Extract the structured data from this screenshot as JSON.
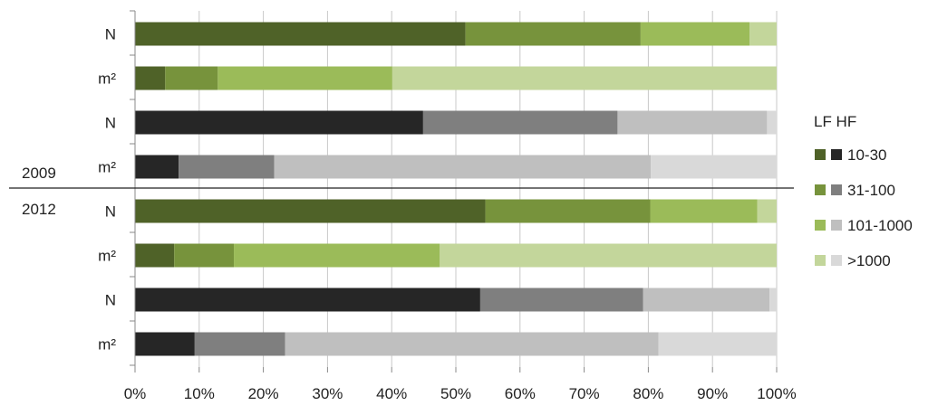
{
  "chart_data": {
    "type": "bar",
    "orientation": "horizontal",
    "stacked": "100%",
    "xlabel": "",
    "ylabel": "",
    "xlim": [
      0,
      100
    ],
    "x_ticks": [
      "0%",
      "10%",
      "20%",
      "30%",
      "40%",
      "50%",
      "60%",
      "70%",
      "80%",
      "90%",
      "100%"
    ],
    "grid": "vertical gridlines",
    "legend_placement": "right",
    "legend_header": "LF HF",
    "categories": [
      "10-30",
      "31-100",
      "101-1000",
      ">1000"
    ],
    "colors": {
      "LF": [
        "#4f6228",
        "#77933c",
        "#9bbb59",
        "#c3d69b"
      ],
      "HF": [
        "#262626",
        "#7f7f7f",
        "#bfbfbf",
        "#d9d9d9"
      ]
    },
    "group_labels": [
      "2009",
      "2012"
    ],
    "rows": [
      {
        "label": "N",
        "group": "2009",
        "scheme": "LF",
        "values": [
          51.5,
          27.3,
          17.0,
          4.2
        ]
      },
      {
        "label": "m²",
        "group": "2009",
        "scheme": "LF",
        "values": [
          4.7,
          8.2,
          27.2,
          59.9
        ]
      },
      {
        "label": "N",
        "group": "2009",
        "scheme": "HF",
        "values": [
          44.9,
          30.3,
          23.3,
          1.5
        ]
      },
      {
        "label": "m²",
        "group": "2009",
        "scheme": "HF",
        "values": [
          6.8,
          14.9,
          58.7,
          19.6
        ]
      },
      {
        "label": "N",
        "group": "2012",
        "scheme": "LF",
        "values": [
          54.6,
          25.7,
          16.7,
          3.0
        ]
      },
      {
        "label": "m²",
        "group": "2012",
        "scheme": "LF",
        "values": [
          6.1,
          9.3,
          32.1,
          52.5
        ]
      },
      {
        "label": "N",
        "group": "2012",
        "scheme": "HF",
        "values": [
          53.8,
          25.4,
          19.7,
          1.1
        ]
      },
      {
        "label": "m²",
        "group": "2012",
        "scheme": "HF",
        "values": [
          9.3,
          14.1,
          58.2,
          18.4
        ]
      }
    ]
  }
}
